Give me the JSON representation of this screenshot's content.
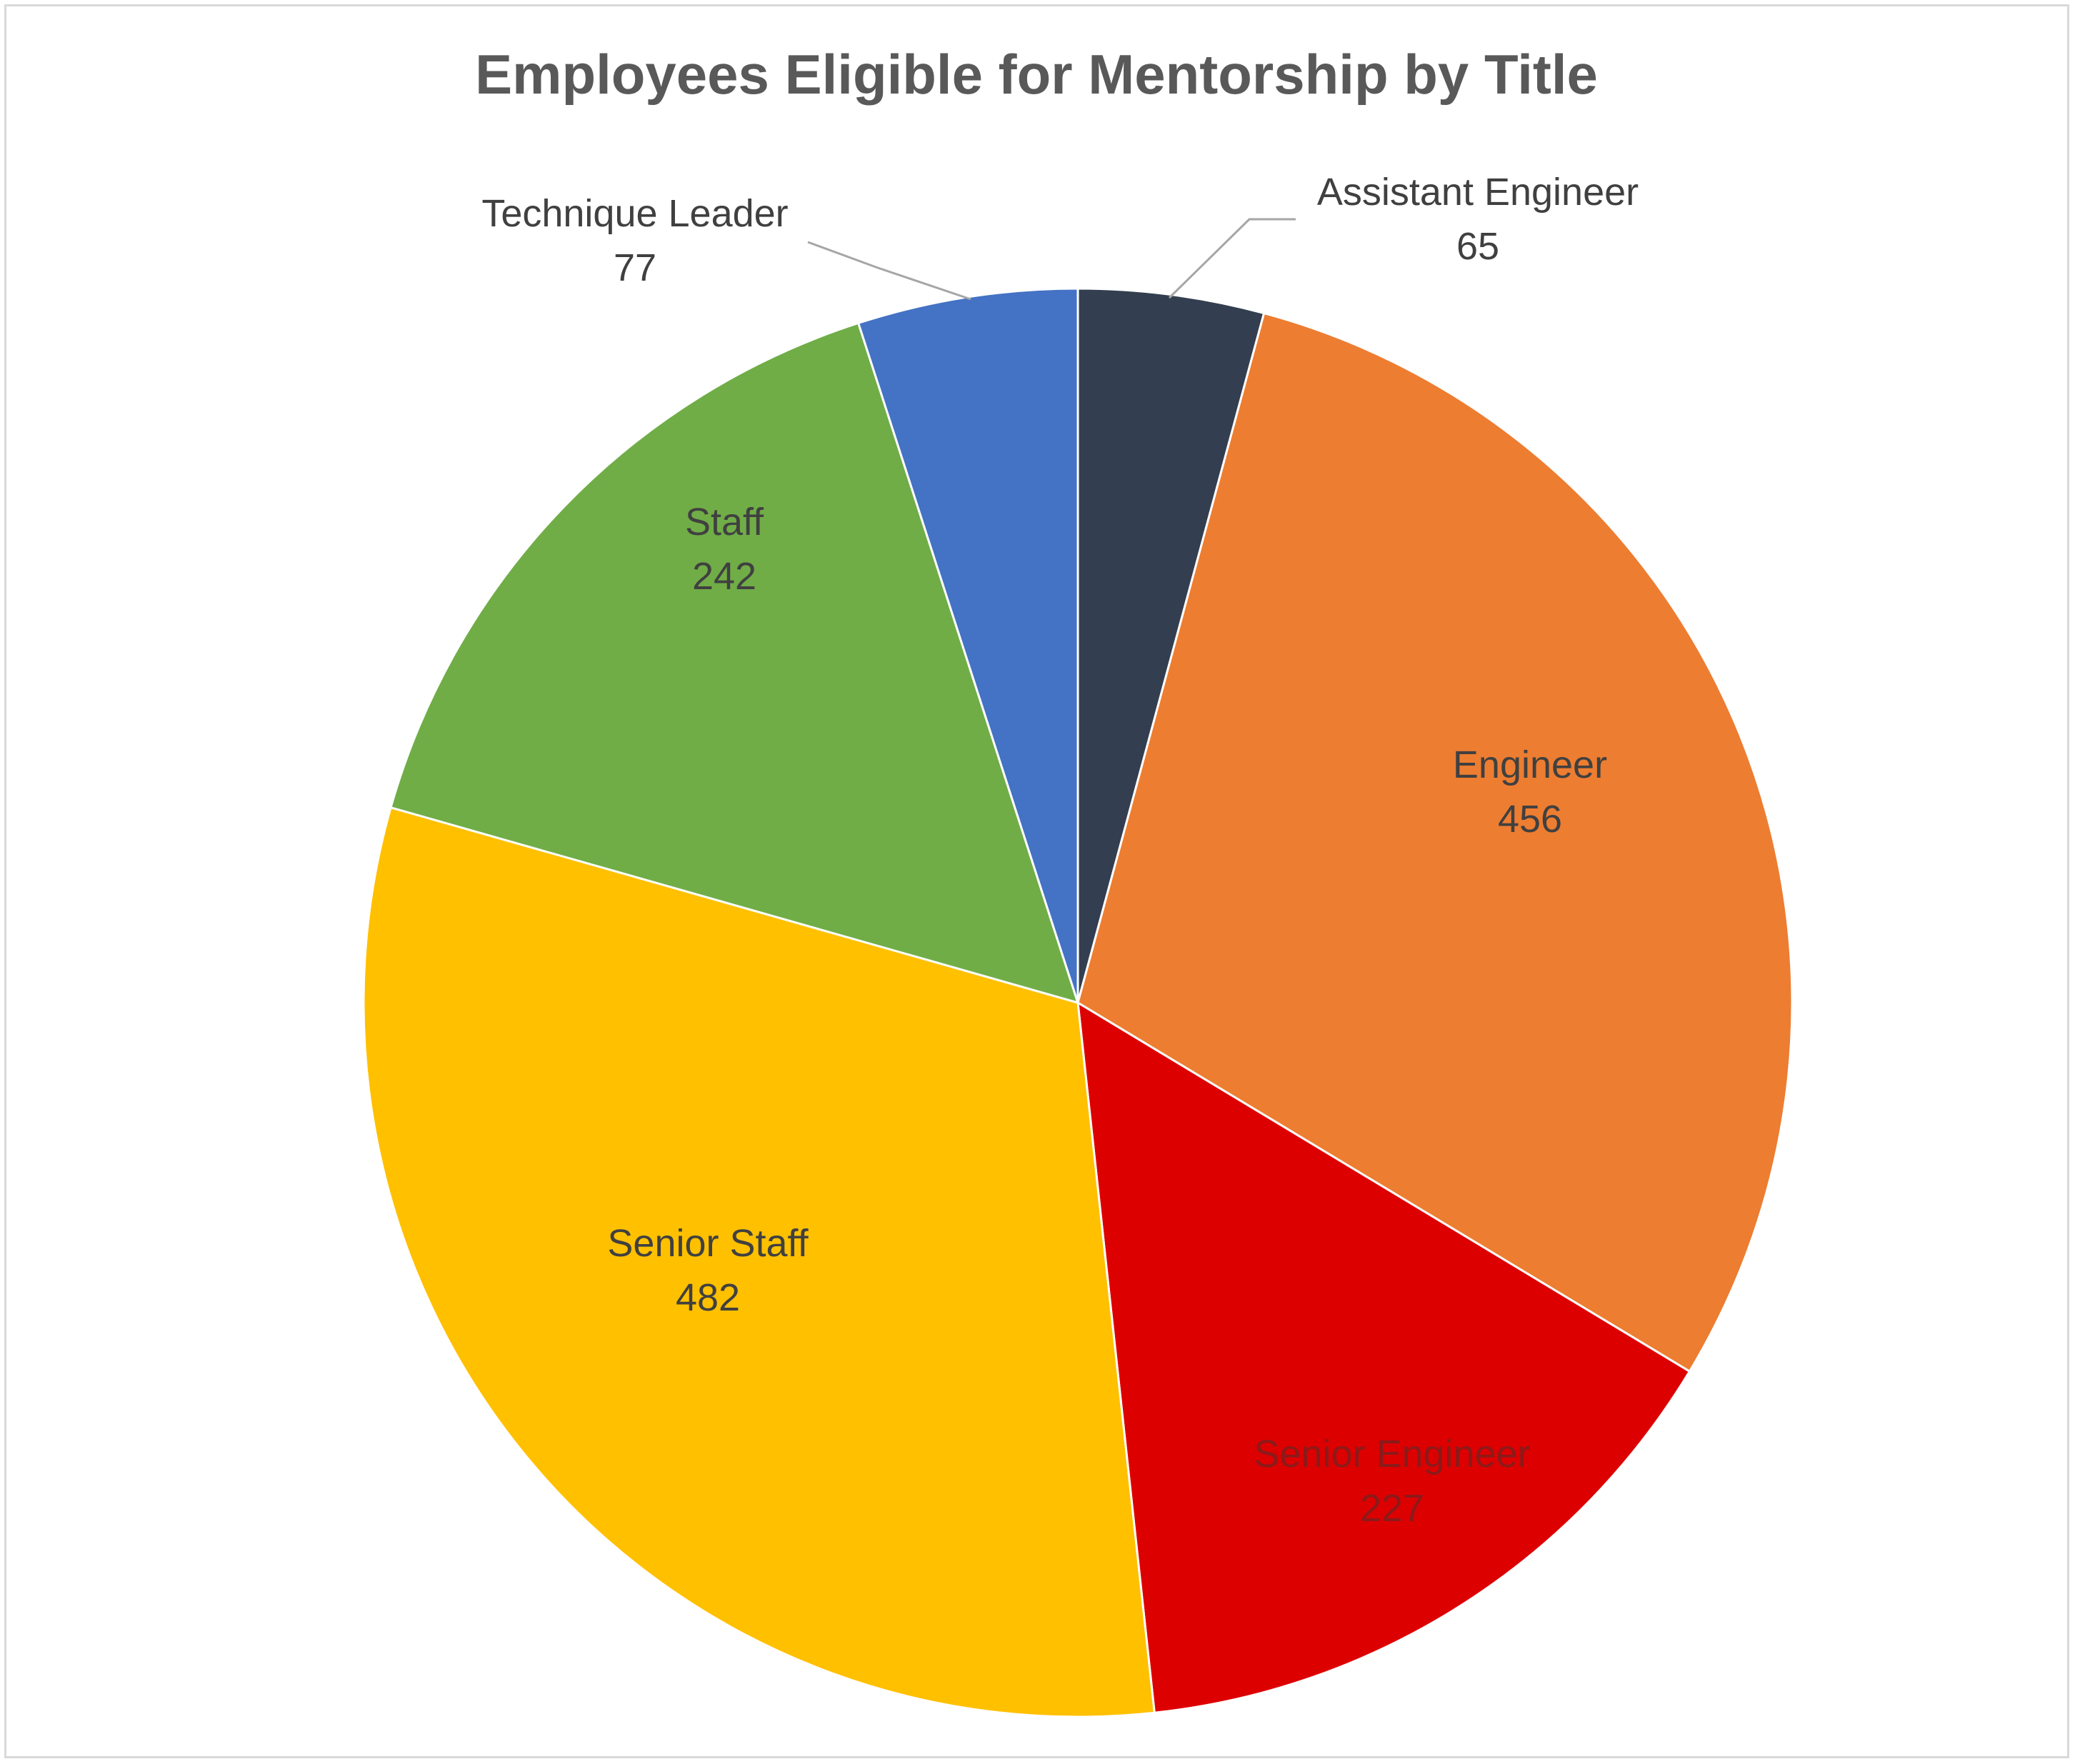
{
  "chart_data": {
    "type": "pie",
    "title": "Employees Eligible for Mentorship by Title",
    "categories": [
      "Assistant Engineer",
      "Engineer",
      "Senior Engineer",
      "Senior Staff",
      "Staff",
      "Technique Leader"
    ],
    "values": [
      65,
      456,
      227,
      482,
      242,
      77
    ],
    "colors": [
      "#333f50",
      "#ed7d31",
      "#dd0000",
      "#ffc000",
      "#70ad47",
      "#4472c4"
    ],
    "label_colors": [
      "#404040",
      "#404040",
      "#8b1a1a",
      "#404040",
      "#404040",
      "#404040"
    ],
    "start_angle_deg": 0,
    "direction": "clockwise",
    "legend": "none",
    "data_labels": "category name and value"
  }
}
